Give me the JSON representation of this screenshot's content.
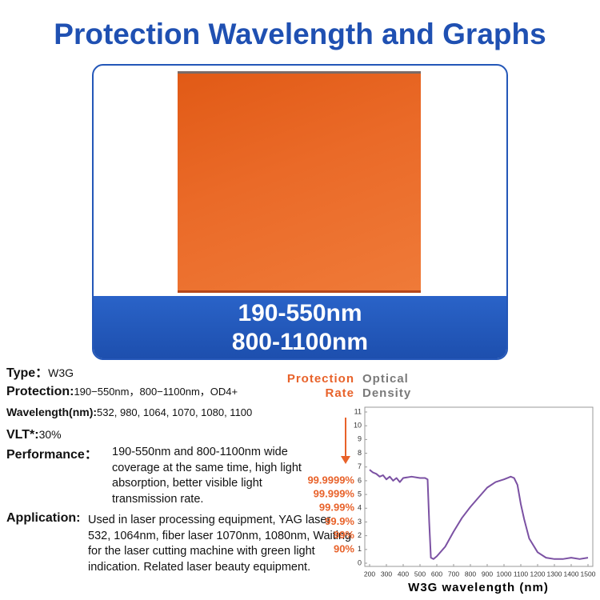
{
  "header": {
    "title": "Protection Wavelength and Graphs"
  },
  "product": {
    "ranges": [
      "190-550nm",
      "800-1100nm"
    ]
  },
  "specs": [
    {
      "label": "Type：",
      "value": "W3G"
    },
    {
      "label": "Protection:",
      "value": "190−550nm，800−1100nm，OD4+"
    },
    {
      "label": "Wavelength(nm):",
      "value": "532, 980, 1064, 1070, 1080, 1100"
    },
    {
      "label": "VLT*:",
      "value": "30%"
    },
    {
      "label": "Performance：",
      "value": "190-550nm and 800-1100nm wide coverage at the same time, high light absorption, better visible light transmission rate."
    },
    {
      "label": "Application:",
      "value": "Used in laser processing equipment, YAG laser 532, 1064nm, fiber laser 1070nm, 1080nm, Waiting for the laser cutting machine with green light indication. Related laser beauty equipment."
    }
  ],
  "chart_data": {
    "type": "line",
    "ylabel": "Optical Density",
    "y2label": "Protection Rate",
    "xlabel": "W3G wavelength (nm)",
    "color": "#7b51a3",
    "x": [
      200,
      220,
      240,
      260,
      280,
      300,
      320,
      340,
      360,
      380,
      400,
      450,
      500,
      530,
      545,
      555,
      565,
      580,
      600,
      650,
      700,
      750,
      800,
      850,
      900,
      950,
      1000,
      1040,
      1060,
      1080,
      1100,
      1120,
      1150,
      1200,
      1250,
      1300,
      1350,
      1400,
      1450,
      1500
    ],
    "values": [
      6.8,
      6.6,
      6.5,
      6.3,
      6.4,
      6.1,
      6.3,
      6.0,
      6.2,
      5.9,
      6.2,
      6.3,
      6.2,
      6.2,
      6.1,
      3.0,
      0.4,
      0.3,
      0.5,
      1.2,
      2.3,
      3.3,
      4.1,
      4.8,
      5.5,
      5.9,
      6.1,
      6.3,
      6.2,
      5.7,
      4.3,
      3.2,
      1.8,
      0.8,
      0.4,
      0.3,
      0.3,
      0.4,
      0.3,
      0.4
    ],
    "xlim": [
      200,
      1500
    ],
    "xticks": [
      200,
      300,
      400,
      500,
      600,
      700,
      800,
      900,
      1000,
      1100,
      1200,
      1300,
      1400,
      1500
    ],
    "ylim": [
      0,
      11
    ],
    "yticks": [
      0,
      1,
      2,
      3,
      4,
      5,
      6,
      7,
      8,
      9,
      10,
      11
    ],
    "y2lim": [
      0,
      11
    ],
    "y2ticks": [
      {
        "value": 6,
        "label": "99.9999%"
      },
      {
        "value": 5,
        "label": "99.999%"
      },
      {
        "value": 4,
        "label": "99.99%"
      },
      {
        "value": 3,
        "label": "99.9%"
      },
      {
        "value": 2,
        "label": "99%"
      },
      {
        "value": 1,
        "label": "90%"
      }
    ]
  }
}
